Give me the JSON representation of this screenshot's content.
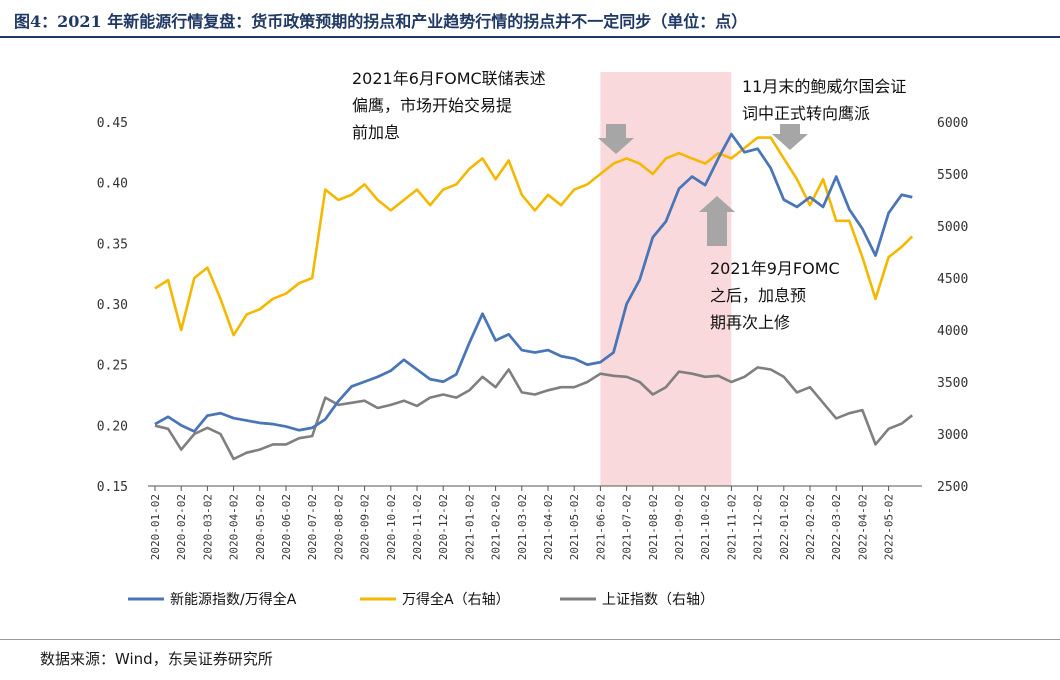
{
  "header": {
    "title": "图4：2021 年新能源行情复盘：货币政策预期的拐点和产业趋势行情的拐点并不一定同步（单位：点）"
  },
  "footer": {
    "source": "数据来源：Wind，东吴证券研究所"
  },
  "chart_data": {
    "type": "line",
    "x_tick_labels": [
      "2020-01-02",
      "2020-02-02",
      "2020-03-02",
      "2020-04-02",
      "2020-05-02",
      "2020-06-02",
      "2020-07-02",
      "2020-08-02",
      "2020-09-02",
      "2020-10-02",
      "2020-11-02",
      "2020-12-02",
      "2021-01-02",
      "2021-02-02",
      "2021-03-02",
      "2021-04-02",
      "2021-05-02",
      "2021-06-02",
      "2021-07-02",
      "2021-08-02",
      "2021-09-02",
      "2021-10-02",
      "2021-11-02",
      "2021-12-02",
      "2022-01-02",
      "2022-02-02",
      "2022-03-02",
      "2022-04-02",
      "2022-05-02"
    ],
    "y_left": {
      "min": 0.15,
      "max": 0.45,
      "ticks": [
        "0.15",
        "0.20",
        "0.25",
        "0.30",
        "0.35",
        "0.40",
        "0.45"
      ]
    },
    "y_right": {
      "min": 2500,
      "max": 6000,
      "ticks": [
        "2500",
        "3000",
        "3500",
        "4000",
        "4500",
        "5000",
        "5500",
        "6000"
      ]
    },
    "highlight": {
      "from": "2021-06-02",
      "to": "2021-11-02",
      "color": "#f9d9dc"
    },
    "series": [
      {
        "name": "新能源指数/万得全A",
        "axis": "left",
        "color": "#4a76b8",
        "points": [
          [
            0,
            0.201
          ],
          [
            0.5,
            0.207
          ],
          [
            1,
            0.2
          ],
          [
            1.5,
            0.195
          ],
          [
            2,
            0.208
          ],
          [
            2.5,
            0.21
          ],
          [
            3,
            0.206
          ],
          [
            3.5,
            0.204
          ],
          [
            4,
            0.202
          ],
          [
            4.5,
            0.201
          ],
          [
            5,
            0.199
          ],
          [
            5.5,
            0.196
          ],
          [
            6,
            0.198
          ],
          [
            6.5,
            0.205
          ],
          [
            7,
            0.22
          ],
          [
            7.5,
            0.232
          ],
          [
            8,
            0.236
          ],
          [
            8.5,
            0.24
          ],
          [
            9,
            0.245
          ],
          [
            9.5,
            0.254
          ],
          [
            10,
            0.246
          ],
          [
            10.5,
            0.238
          ],
          [
            11,
            0.236
          ],
          [
            11.5,
            0.242
          ],
          [
            12,
            0.268
          ],
          [
            12.5,
            0.292
          ],
          [
            13,
            0.27
          ],
          [
            13.5,
            0.275
          ],
          [
            14,
            0.262
          ],
          [
            14.5,
            0.26
          ],
          [
            15,
            0.262
          ],
          [
            15.5,
            0.257
          ],
          [
            16,
            0.255
          ],
          [
            16.5,
            0.25
          ],
          [
            17,
            0.252
          ],
          [
            17.5,
            0.26
          ],
          [
            18,
            0.3
          ],
          [
            18.5,
            0.32
          ],
          [
            19,
            0.355
          ],
          [
            19.5,
            0.368
          ],
          [
            20,
            0.395
          ],
          [
            20.5,
            0.405
          ],
          [
            21,
            0.398
          ],
          [
            21.5,
            0.42
          ],
          [
            22,
            0.44
          ],
          [
            22.5,
            0.425
          ],
          [
            23,
            0.428
          ],
          [
            23.5,
            0.412
          ],
          [
            24,
            0.386
          ],
          [
            24.5,
            0.38
          ],
          [
            25,
            0.388
          ],
          [
            25.5,
            0.38
          ],
          [
            26,
            0.405
          ],
          [
            26.5,
            0.378
          ],
          [
            27,
            0.362
          ],
          [
            27.5,
            0.34
          ],
          [
            28,
            0.375
          ],
          [
            28.5,
            0.39
          ],
          [
            28.9,
            0.388
          ]
        ]
      },
      {
        "name": "万得全A（右轴）",
        "axis": "right",
        "color": "#f5b800",
        "points": [
          [
            0,
            4400
          ],
          [
            0.5,
            4480
          ],
          [
            1,
            4000
          ],
          [
            1.5,
            4500
          ],
          [
            2,
            4600
          ],
          [
            2.5,
            4300
          ],
          [
            3,
            3950
          ],
          [
            3.5,
            4150
          ],
          [
            4,
            4200
          ],
          [
            4.5,
            4300
          ],
          [
            5,
            4350
          ],
          [
            5.5,
            4450
          ],
          [
            6,
            4500
          ],
          [
            6.5,
            5350
          ],
          [
            7,
            5250
          ],
          [
            7.5,
            5300
          ],
          [
            8,
            5400
          ],
          [
            8.5,
            5250
          ],
          [
            9,
            5150
          ],
          [
            9.5,
            5250
          ],
          [
            10,
            5350
          ],
          [
            10.5,
            5200
          ],
          [
            11,
            5350
          ],
          [
            11.5,
            5400
          ],
          [
            12,
            5550
          ],
          [
            12.5,
            5650
          ],
          [
            13,
            5450
          ],
          [
            13.5,
            5630
          ],
          [
            14,
            5300
          ],
          [
            14.5,
            5150
          ],
          [
            15,
            5300
          ],
          [
            15.5,
            5200
          ],
          [
            16,
            5350
          ],
          [
            16.5,
            5400
          ],
          [
            17,
            5500
          ],
          [
            17.5,
            5600
          ],
          [
            18,
            5650
          ],
          [
            18.5,
            5600
          ],
          [
            19,
            5500
          ],
          [
            19.5,
            5650
          ],
          [
            20,
            5700
          ],
          [
            20.5,
            5650
          ],
          [
            21,
            5600
          ],
          [
            21.5,
            5700
          ],
          [
            22,
            5650
          ],
          [
            22.5,
            5750
          ],
          [
            23,
            5850
          ],
          [
            23.5,
            5850
          ],
          [
            24,
            5650
          ],
          [
            24.5,
            5450
          ],
          [
            25,
            5200
          ],
          [
            25.5,
            5450
          ],
          [
            26,
            5050
          ],
          [
            26.5,
            5050
          ],
          [
            27,
            4700
          ],
          [
            27.5,
            4300
          ],
          [
            28,
            4700
          ],
          [
            28.5,
            4800
          ],
          [
            28.9,
            4900
          ]
        ]
      },
      {
        "name": "上证指数（右轴）",
        "axis": "right",
        "color": "#7f7f7f",
        "points": [
          [
            0,
            3080
          ],
          [
            0.5,
            3050
          ],
          [
            1,
            2850
          ],
          [
            1.5,
            3000
          ],
          [
            2,
            3060
          ],
          [
            2.5,
            3000
          ],
          [
            3,
            2760
          ],
          [
            3.5,
            2820
          ],
          [
            4,
            2850
          ],
          [
            4.5,
            2900
          ],
          [
            5,
            2900
          ],
          [
            5.5,
            2960
          ],
          [
            6,
            2980
          ],
          [
            6.5,
            3350
          ],
          [
            7,
            3280
          ],
          [
            7.5,
            3300
          ],
          [
            8,
            3320
          ],
          [
            8.5,
            3250
          ],
          [
            9,
            3280
          ],
          [
            9.5,
            3320
          ],
          [
            10,
            3270
          ],
          [
            10.5,
            3350
          ],
          [
            11,
            3380
          ],
          [
            11.5,
            3350
          ],
          [
            12,
            3420
          ],
          [
            12.5,
            3550
          ],
          [
            13,
            3450
          ],
          [
            13.5,
            3620
          ],
          [
            14,
            3400
          ],
          [
            14.5,
            3380
          ],
          [
            15,
            3420
          ],
          [
            15.5,
            3450
          ],
          [
            16,
            3450
          ],
          [
            16.5,
            3500
          ],
          [
            17,
            3580
          ],
          [
            17.5,
            3560
          ],
          [
            18,
            3550
          ],
          [
            18.5,
            3500
          ],
          [
            19,
            3380
          ],
          [
            19.5,
            3450
          ],
          [
            20,
            3600
          ],
          [
            20.5,
            3580
          ],
          [
            21,
            3550
          ],
          [
            21.5,
            3560
          ],
          [
            22,
            3500
          ],
          [
            22.5,
            3550
          ],
          [
            23,
            3640
          ],
          [
            23.5,
            3620
          ],
          [
            24,
            3550
          ],
          [
            24.5,
            3400
          ],
          [
            25,
            3450
          ],
          [
            25.5,
            3300
          ],
          [
            26,
            3150
          ],
          [
            26.5,
            3200
          ],
          [
            27,
            3230
          ],
          [
            27.5,
            2900
          ],
          [
            28,
            3050
          ],
          [
            28.5,
            3100
          ],
          [
            28.9,
            3180
          ]
        ]
      }
    ],
    "annotations": [
      {
        "lines": [
          "2021年6月FOMC联储表述",
          "偏鹰，市场开始交易提",
          "前加息"
        ]
      },
      {
        "lines": [
          "11月末的鲍威尔国会证",
          "词中正式转向鹰派"
        ]
      },
      {
        "lines": [
          "2021年9月FOMC",
          "之后，加息预",
          "期再次上修"
        ]
      }
    ]
  }
}
